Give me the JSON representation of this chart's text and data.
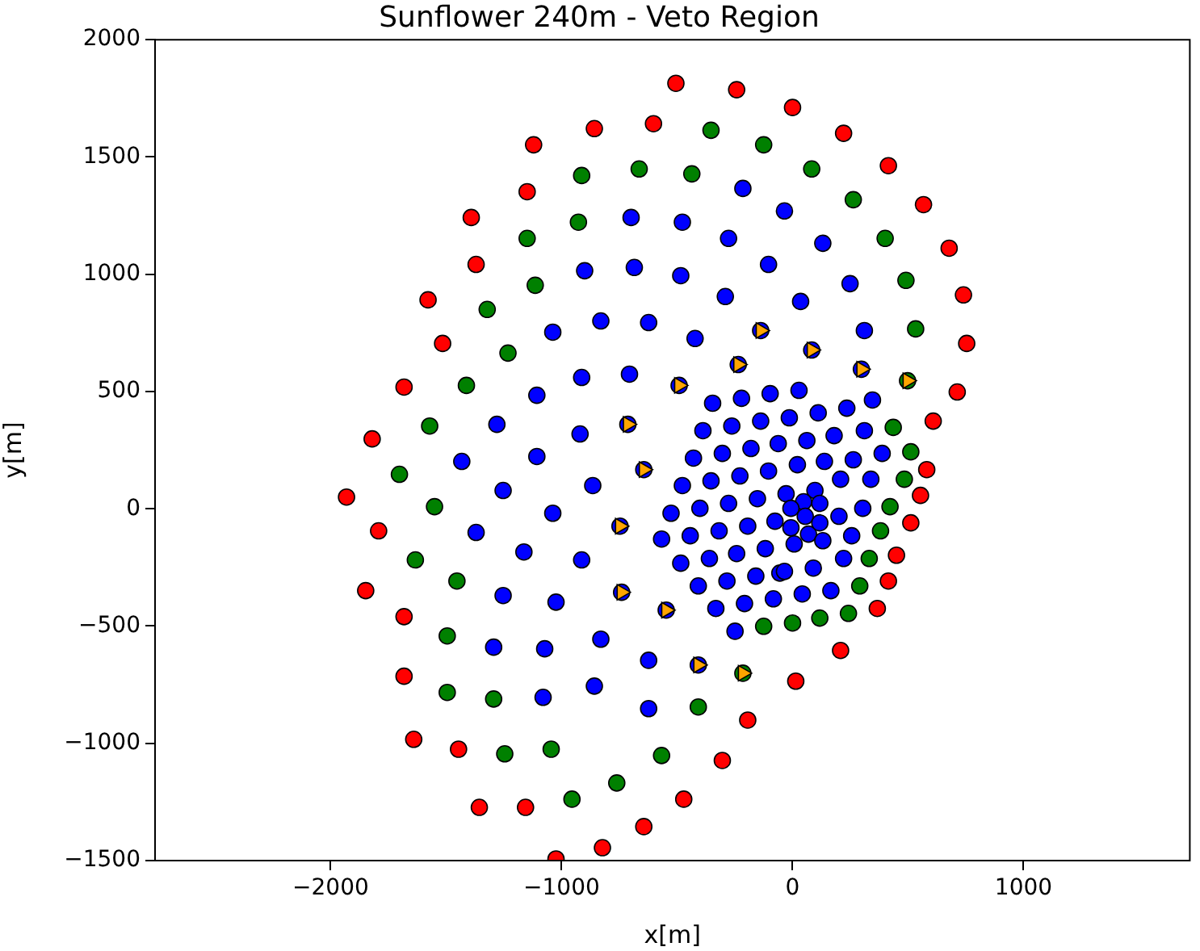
{
  "chart_data": {
    "type": "scatter",
    "title": "Sunflower 240m - Veto Region",
    "xlabel": "x[m]",
    "ylabel": "y[m]",
    "xlim": [
      -2760,
      1720
    ],
    "ylim": [
      -1500,
      2000
    ],
    "xticks": [
      -2000,
      -1000,
      0,
      1000
    ],
    "yticks": [
      -1500,
      -1000,
      -500,
      0,
      500,
      1000,
      1500,
      2000
    ],
    "grid": false,
    "marker": "circle",
    "series": [
      {
        "color": "#ff0000",
        "x": [
          -505,
          -242,
          0,
          221,
          415,
          567,
          678,
          740,
          754,
          713,
          609,
          581,
          554,
          512,
          450,
          415,
          367,
          208,
          14,
          -194,
          -304,
          -471,
          -644,
          -823,
          -1024,
          -1156,
          -1356,
          -1446,
          -1640,
          -1682,
          -1682,
          -1848,
          -1792,
          -1931,
          -1820,
          -1682,
          -1515,
          -1578,
          -1370,
          -1391,
          -1149,
          -1121,
          -858,
          -602
        ],
        "values": [
          1814,
          1787,
          1711,
          1601,
          1463,
          1297,
          1111,
          912,
          705,
          498,
          374,
          167,
          57,
          -60,
          -198,
          -308,
          -425,
          -604,
          -735,
          -901,
          -1073,
          -1238,
          -1355,
          -1445,
          -1493,
          -1273,
          -1273,
          -1025,
          -983,
          -714,
          -460,
          -349,
          -94,
          50,
          298,
          519,
          705,
          891,
          1042,
          1242,
          1352,
          1552,
          1621,
          1642
        ]
      },
      {
        "color": "#008000",
        "x": [
          -353,
          -125,
          83,
          263,
          401,
          491,
          533,
          498,
          436,
          512,
          484,
          422,
          381,
          332,
          291,
          242,
          118,
          0,
          -125,
          -215,
          -408,
          -567,
          -761,
          -955,
          -1045,
          -1246,
          -1294,
          -1495,
          -1495,
          -1453,
          -1633,
          -1550,
          -1702,
          -1571,
          -1412,
          -1232,
          -1322,
          -1114,
          -1149,
          -927,
          -913,
          -664,
          -436
        ],
        "values": [
          1614,
          1552,
          1449,
          1318,
          1153,
          974,
          767,
          546,
          347,
          243,
          126,
          9,
          -94,
          -212,
          -329,
          -446,
          -466,
          -487,
          -501,
          -701,
          -845,
          -1052,
          -1169,
          -1238,
          -1025,
          -1045,
          -811,
          -783,
          -542,
          -308,
          -218,
          9,
          147,
          353,
          526,
          664,
          850,
          953,
          1153,
          1222,
          1421,
          1449,
          1428
        ]
      },
      {
        "color": "#0000ff",
        "x": [
          -215,
          -35,
          -699,
          -477,
          -277,
          131,
          -900,
          -685,
          -484,
          -104,
          -291,
          249,
          35,
          -1038,
          -830,
          -623,
          -422,
          311,
          -1107,
          -1280,
          -1432,
          -1107,
          -913,
          -706,
          -920,
          -346,
          -221,
          -97,
          28,
          -388,
          -263,
          -138,
          -14,
          111,
          235,
          346,
          -429,
          -304,
          -180,
          -62,
          62,
          180,
          311,
          388,
          21,
          138,
          263,
          -1253,
          -1038,
          -1370,
          -1163,
          -1253,
          -1024,
          -1294,
          -1073,
          -1080,
          -865,
          -477,
          -353,
          -228,
          -104,
          -526,
          -401,
          -277,
          -152,
          -76,
          -567,
          -443,
          -318,
          -194,
          -118,
          -484,
          -360,
          -242,
          -55,
          -408,
          -284,
          -159,
          -83,
          -332,
          -208,
          -249,
          -913,
          -830,
          -623,
          -858,
          -623,
          208,
          339,
          -28,
          97,
          48,
          118,
          -7,
          55,
          -7,
          69,
          118,
          131,
          7,
          201,
          304,
          256,
          221,
          -35,
          90,
          166,
          42,
          -138,
          83,
          298,
          -235,
          -491,
          -713,
          -644,
          -747,
          -740,
          -547,
          -408
        ],
        "values": [
          1366,
          1270,
          1242,
          1222,
          1153,
          1132,
          1015,
          1029,
          994,
          1042,
          905,
          960,
          884,
          753,
          801,
          794,
          726,
          760,
          484,
          360,
          202,
          223,
          560,
          574,
          319,
          450,
          471,
          491,
          505,
          333,
          353,
          374,
          388,
          409,
          429,
          464,
          216,
          236,
          257,
          278,
          291,
          312,
          333,
          236,
          188,
          202,
          209,
          78,
          -19,
          -101,
          -184,
          -370,
          -398,
          -590,
          -597,
          -804,
          99,
          99,
          119,
          140,
          161,
          -19,
          2,
          23,
          43,
          -53,
          -129,
          -115,
          -94,
          -74,
          -170,
          -232,
          -212,
          -191,
          -274,
          -329,
          -308,
          -287,
          -384,
          -425,
          -404,
          -522,
          -218,
          -556,
          -646,
          -756,
          -852,
          126,
          126,
          64,
          78,
          30,
          23,
          2,
          -32,
          -81,
          -108,
          -60,
          -136,
          -150,
          -32,
          2,
          -115,
          -212,
          -267,
          -253,
          -349,
          -363,
          760,
          677,
          595,
          615,
          526,
          360,
          167,
          -74,
          -356,
          -432,
          -666
        ]
      },
      {
        "color": "#ffa500",
        "marker": "triangle",
        "x": [
          -138,
          83,
          298,
          498,
          -235,
          -491,
          -713,
          -644,
          -747,
          -740,
          -547,
          -408,
          -215
        ],
        "values": [
          760,
          677,
          595,
          546,
          615,
          526,
          360,
          167,
          -74,
          -356,
          -432,
          -666,
          -701
        ]
      }
    ]
  }
}
